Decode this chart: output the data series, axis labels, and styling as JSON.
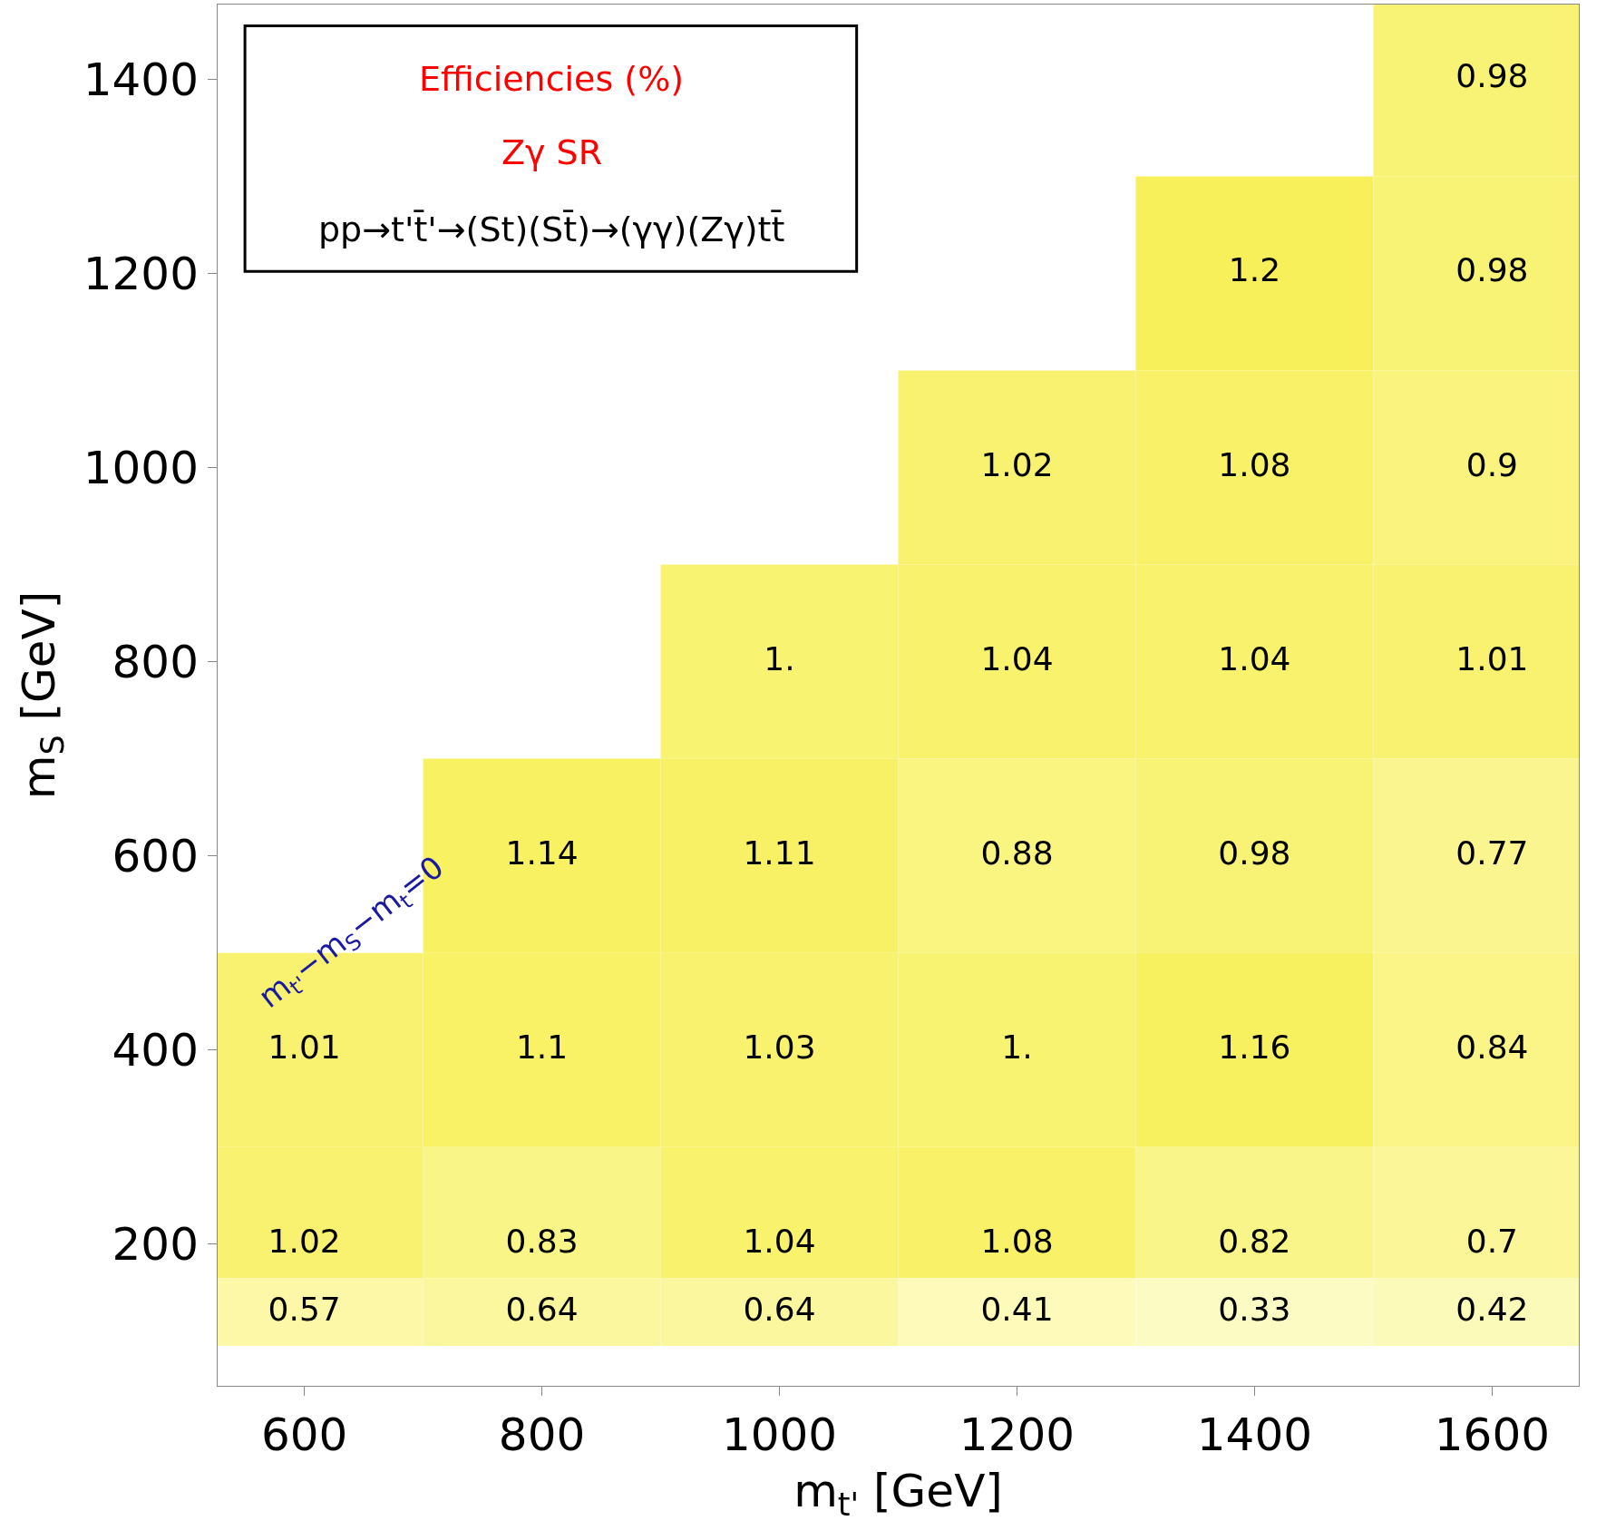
{
  "chart_data": {
    "type": "heatmap",
    "title": "Efficiencies (%)",
    "subtitle": "Zγ SR",
    "annotations": [
      "pp→t'$^{}$t̄'→(St)(St̄)→(γγ)(Zγ)tt̄",
      "m$_{t'}$−m$_{S}$−m$_{t}$=0"
    ],
    "xlabel": "m$_{t'}$ [GeV]",
    "ylabel": "m$_{S}$ [GeV]",
    "x": [
      600,
      800,
      1000,
      1200,
      1400,
      1600
    ],
    "y": [
      1400,
      1200,
      1000,
      800,
      600,
      400,
      200,
      130
    ],
    "cells": [
      [
        null,
        null,
        null,
        null,
        null,
        0.98
      ],
      [
        null,
        null,
        null,
        null,
        1.2,
        0.98
      ],
      [
        null,
        null,
        null,
        1.02,
        1.08,
        0.9
      ],
      [
        null,
        null,
        1.0,
        1.04,
        1.04,
        1.01
      ],
      [
        null,
        1.14,
        1.11,
        0.88,
        0.98,
        0.77
      ],
      [
        1.01,
        1.1,
        1.03,
        1.0,
        1.16,
        0.84
      ],
      [
        1.02,
        0.83,
        1.04,
        1.08,
        0.82,
        0.7
      ],
      [
        0.57,
        0.64,
        0.64,
        0.41,
        0.33,
        0.42
      ]
    ],
    "cell_labels": [
      [
        null,
        null,
        null,
        null,
        null,
        "0.98"
      ],
      [
        null,
        null,
        null,
        null,
        "1.2",
        "0.98"
      ],
      [
        null,
        null,
        null,
        "1.02",
        "1.08",
        "0.9"
      ],
      [
        null,
        null,
        "1.",
        "1.04",
        "1.04",
        "1.01"
      ],
      [
        null,
        "1.14",
        "1.11",
        "0.88",
        "0.98",
        "0.77"
      ],
      [
        "1.01",
        "1.1",
        "1.03",
        "1.",
        "1.16",
        "0.84"
      ],
      [
        "1.02",
        "0.83",
        "1.04",
        "1.08",
        "0.82",
        "0.7"
      ],
      [
        "0.57",
        "0.64",
        "0.64",
        "0.41",
        "0.33",
        "0.42"
      ]
    ],
    "colors": [
      "#fdfbc4",
      "#f8f05a"
    ],
    "xlim": [
      527,
      1673
    ],
    "ylim": [
      54,
      1477
    ],
    "xticks": [
      600,
      800,
      1000,
      1200,
      1400,
      1600
    ],
    "yticks": [
      200,
      400,
      600,
      800,
      1000,
      1200,
      1400
    ]
  }
}
